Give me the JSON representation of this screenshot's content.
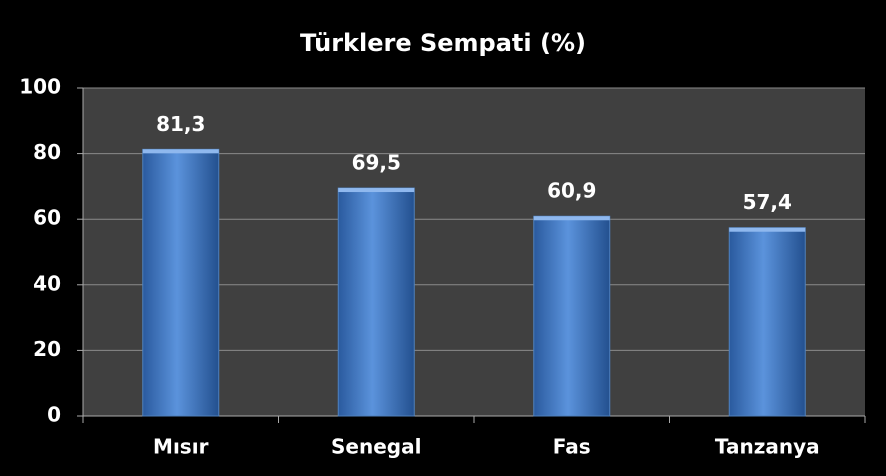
{
  "chart_data": {
    "type": "bar",
    "title": "Türklere Sempati (%)",
    "categories": [
      "Mısır",
      "Senegal",
      "Fas",
      "Tanzanya"
    ],
    "values": [
      81.3,
      69.5,
      60.9,
      57.4
    ],
    "value_labels": [
      "81,3",
      "69,5",
      "60,9",
      "57,4"
    ],
    "color": "#4f81bd",
    "ylim": [
      0,
      100
    ],
    "yticks": [
      0,
      20,
      40,
      60,
      80,
      100
    ],
    "grid": true
  }
}
